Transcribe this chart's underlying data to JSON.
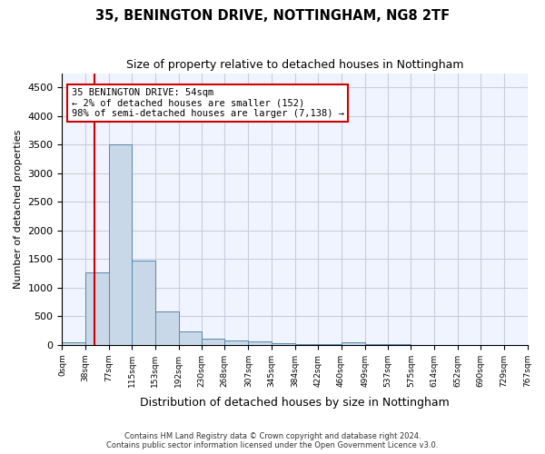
{
  "title1": "35, BENINGTON DRIVE, NOTTINGHAM, NG8 2TF",
  "title2": "Size of property relative to detached houses in Nottingham",
  "xlabel": "Distribution of detached houses by size in Nottingham",
  "ylabel": "Number of detached properties",
  "bar_color": "#c8d8e8",
  "bar_edge_color": "#5588aa",
  "grid_color": "#ccccdd",
  "background_color": "#f0f4ff",
  "annotation_box_color": "#cc0000",
  "property_line_x": 54,
  "annotation_text_line1": "35 BENINGTON DRIVE: 54sqm",
  "annotation_text_line2": "← 2% of detached houses are smaller (152)",
  "annotation_text_line3": "98% of semi-detached houses are larger (7,138) →",
  "footnote1": "Contains HM Land Registry data © Crown copyright and database right 2024.",
  "footnote2": "Contains public sector information licensed under the Open Government Licence v3.0.",
  "bin_edges": [
    0,
    38,
    77,
    115,
    153,
    192,
    230,
    268,
    307,
    345,
    384,
    422,
    460,
    499,
    537,
    575,
    614,
    652,
    690,
    729,
    767
  ],
  "bar_heights": [
    40,
    1270,
    3500,
    1480,
    580,
    240,
    115,
    80,
    55,
    30,
    20,
    15,
    50,
    10,
    5,
    3,
    2,
    2,
    2,
    2
  ],
  "ylim": [
    0,
    4750
  ],
  "yticks": [
    0,
    500,
    1000,
    1500,
    2000,
    2500,
    3000,
    3500,
    4000,
    4500
  ]
}
